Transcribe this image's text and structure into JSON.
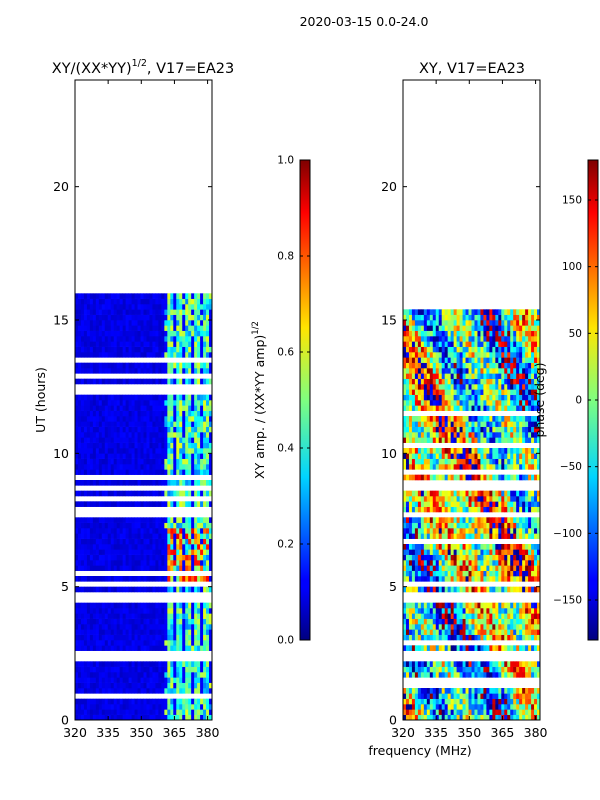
{
  "figure": {
    "suptitle": "2020-03-15 0.0-24.0",
    "xlabel_shared": "frequency (MHz)"
  },
  "chart_data": [
    {
      "type": "heatmap",
      "id": "amp",
      "title_main": "XY/(XX*YY)",
      "title_exp": "1/2",
      "title_rest": ", V17=EA23",
      "ylabel": "UT (hours)",
      "xlim": [
        320,
        382
      ],
      "ylim": [
        0,
        24
      ],
      "xticks": [
        320,
        335,
        350,
        365,
        380
      ],
      "yticks": [
        0,
        5,
        10,
        15,
        20
      ],
      "colorbar": {
        "label_main": "XY amp. / (XX*YY amp)",
        "label_exp": "1/2",
        "range": [
          0.0,
          1.0
        ],
        "ticks": [
          "0.0",
          "0.2",
          "0.4",
          "0.6",
          "0.8",
          "1.0"
        ],
        "tick_values": [
          0.0,
          0.2,
          0.4,
          0.6,
          0.8,
          1.0
        ],
        "colormap": "jet"
      },
      "data_extent_hours": [
        0,
        15.9
      ],
      "gaps_hours": [
        [
          2.1,
          2.7
        ],
        [
          4.5,
          4.8
        ],
        [
          8.6,
          8.9
        ]
      ],
      "bright_band_mhz": [
        360,
        382
      ]
    },
    {
      "type": "heatmap",
      "id": "phase",
      "title": "XY, V17=EA23",
      "ylabel": "",
      "xlim": [
        320,
        382
      ],
      "ylim": [
        0,
        24
      ],
      "xticks": [
        320,
        335,
        350,
        365,
        380
      ],
      "yticks": [
        0,
        5,
        10,
        15,
        20
      ],
      "colorbar": {
        "label": "phase (deg)",
        "range": [
          -180,
          180
        ],
        "ticks": [
          "150",
          "100",
          "50",
          "0",
          "−50",
          "−100",
          "−150"
        ],
        "tick_values": [
          150,
          100,
          50,
          0,
          -50,
          -100,
          -150
        ],
        "colormap": "jet"
      },
      "data_extent_hours": [
        0,
        15.9
      ],
      "gaps_hours": [
        [
          2.1,
          2.7
        ],
        [
          4.5,
          4.8
        ],
        [
          8.6,
          8.9
        ]
      ]
    }
  ]
}
